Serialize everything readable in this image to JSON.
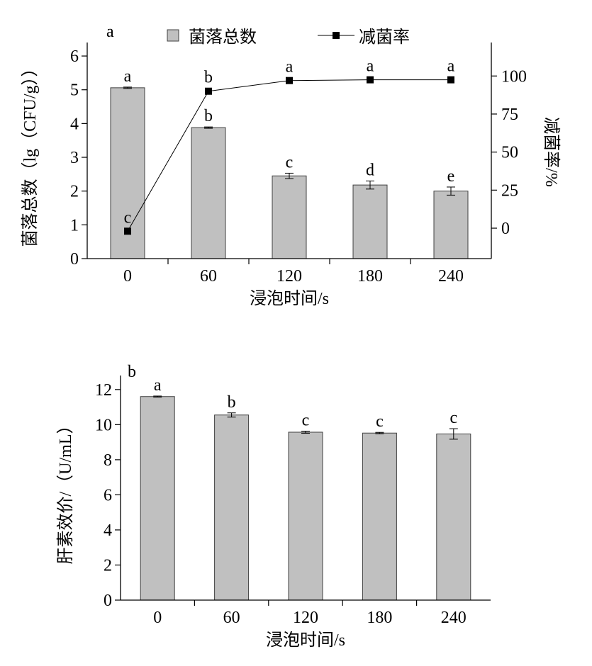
{
  "chart_data": [
    {
      "panel_label": "a",
      "type": "bar+line",
      "xlabel": "浸泡时间/s",
      "categories": [
        "0",
        "60",
        "120",
        "180",
        "240"
      ],
      "ylabel": "菌落总数（lg（CFU/g））",
      "ylim": [
        0,
        6.4
      ],
      "yticks": [
        "0",
        "1",
        "2",
        "3",
        "4",
        "5",
        "6"
      ],
      "y2label": "减菌率/%",
      "y2lim": [
        -20,
        122
      ],
      "y2ticks": [
        "0",
        "25",
        "50",
        "75",
        "100"
      ],
      "legend": [
        "菌落总数",
        "减菌率"
      ],
      "legend_position": "top-center",
      "series": [
        {
          "name": "菌落总数",
          "kind": "bar",
          "axis": "left",
          "values": [
            5.06,
            3.88,
            2.45,
            2.18,
            2.0
          ],
          "errors": [
            0.02,
            0.02,
            0.08,
            0.12,
            0.12
          ],
          "letters": [
            "a",
            "b",
            "c",
            "d",
            "e"
          ]
        },
        {
          "name": "减菌率",
          "kind": "line",
          "axis": "right",
          "values": [
            -2,
            90,
            97,
            97.5,
            97.5
          ],
          "letters": [
            "c",
            "b",
            "a",
            "a",
            "a"
          ]
        }
      ],
      "colors": {
        "bar": "#c0c0c0",
        "line": "#000000"
      }
    },
    {
      "panel_label": "b",
      "type": "bar",
      "xlabel": "浸泡时间/s",
      "categories": [
        "0",
        "60",
        "120",
        "180",
        "240"
      ],
      "ylabel": "肝素效价/（U/mL）",
      "ylim": [
        0,
        12.8
      ],
      "yticks": [
        "0",
        "2",
        "4",
        "6",
        "8",
        "10",
        "12"
      ],
      "series": [
        {
          "name": "肝素效价",
          "kind": "bar",
          "values": [
            11.6,
            10.55,
            9.57,
            9.52,
            9.47
          ],
          "errors": [
            0.03,
            0.12,
            0.06,
            0.04,
            0.3
          ],
          "letters": [
            "a",
            "b",
            "c",
            "c",
            "c"
          ]
        }
      ],
      "colors": {
        "bar": "#c0c0c0"
      }
    }
  ]
}
